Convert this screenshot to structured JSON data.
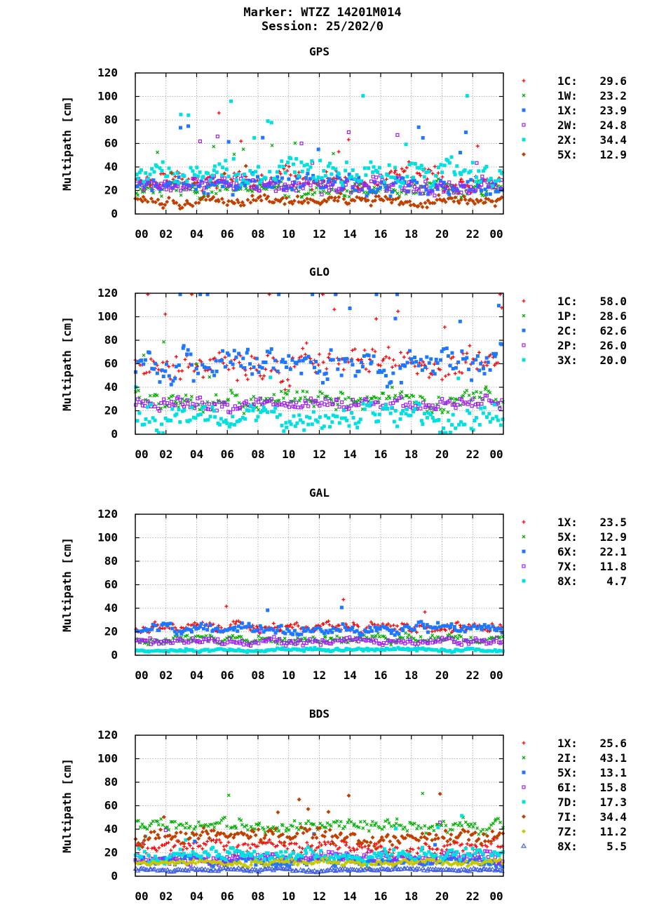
{
  "header": {
    "marker": "Marker: WTZZ 14201M014",
    "session": "Session: 25/202/0"
  },
  "chart_data": [
    {
      "type": "scatter",
      "title": "GPS",
      "ylabel": "Multipath [cm]",
      "xlabel": "",
      "ylim": [
        0,
        120
      ],
      "xlim": [
        0,
        24
      ],
      "yticks": [
        "0",
        "20",
        "40",
        "60",
        "80",
        "100",
        "120"
      ],
      "xticks": [
        "00",
        "02",
        "04",
        "06",
        "08",
        "10",
        "12",
        "14",
        "16",
        "18",
        "20",
        "22",
        "00"
      ],
      "grid": true,
      "legend_position": "right",
      "series": [
        {
          "name": "1C:",
          "value": "29.6",
          "color": "#ff0000",
          "marker": "plus",
          "level": 29.6,
          "spread": 10,
          "spike_rate": 0.012
        },
        {
          "name": "1W:",
          "value": "23.2",
          "color": "#00b000",
          "marker": "cross",
          "level": 22,
          "spread": 8,
          "spike_rate": 0.005
        },
        {
          "name": "1X:",
          "value": "23.9",
          "color": "#1e78ff",
          "marker": "square",
          "level": 23.9,
          "spread": 9,
          "spike_rate": 0.014
        },
        {
          "name": "2W:",
          "value": "24.8",
          "color": "#a020f0",
          "marker": "open-square",
          "level": 24.8,
          "spread": 8,
          "spike_rate": 0.004
        },
        {
          "name": "2X:",
          "value": "34.4",
          "color": "#00e0e0",
          "marker": "square",
          "level": 34.4,
          "spread": 12,
          "spike_rate": 0.012
        },
        {
          "name": "5X:",
          "value": "12.9",
          "color": "#c04000",
          "marker": "diamond",
          "level": 11,
          "spread": 5,
          "spike_rate": 0.008
        }
      ]
    },
    {
      "type": "scatter",
      "title": "GLO",
      "ylabel": "Multipath [cm]",
      "xlabel": "",
      "ylim": [
        0,
        120
      ],
      "xlim": [
        0,
        24
      ],
      "yticks": [
        "0",
        "20",
        "40",
        "60",
        "80",
        "100",
        "120"
      ],
      "xticks": [
        "00",
        "02",
        "04",
        "06",
        "08",
        "10",
        "12",
        "14",
        "16",
        "18",
        "20",
        "22",
        "00"
      ],
      "grid": true,
      "legend_position": "right",
      "series": [
        {
          "name": "1C:",
          "value": "58.0",
          "color": "#ff0000",
          "marker": "plus",
          "level": 58,
          "spread": 14,
          "spike_rate": 0.015
        },
        {
          "name": "1P:",
          "value": "28.6",
          "color": "#00b000",
          "marker": "cross",
          "level": 28.6,
          "spread": 9,
          "spike_rate": 0.006
        },
        {
          "name": "2C:",
          "value": "62.6",
          "color": "#1e78ff",
          "marker": "square",
          "level": 62.6,
          "spread": 15,
          "spike_rate": 0.015
        },
        {
          "name": "2P:",
          "value": "26.0",
          "color": "#a020f0",
          "marker": "open-square",
          "level": 26,
          "spread": 6,
          "spike_rate": 0.004
        },
        {
          "name": "3X:",
          "value": "20.0",
          "color": "#00e0e0",
          "marker": "square",
          "level": 14,
          "spread": 12,
          "spike_rate": 0.012
        }
      ]
    },
    {
      "type": "scatter",
      "title": "GAL",
      "ylabel": "Multipath [cm]",
      "xlabel": "",
      "ylim": [
        0,
        120
      ],
      "xlim": [
        0,
        24
      ],
      "yticks": [
        "0",
        "20",
        "40",
        "60",
        "80",
        "100",
        "120"
      ],
      "xticks": [
        "00",
        "02",
        "04",
        "06",
        "08",
        "10",
        "12",
        "14",
        "16",
        "18",
        "20",
        "22",
        "00"
      ],
      "grid": true,
      "legend_position": "right",
      "series": [
        {
          "name": "1X:",
          "value": "23.5",
          "color": "#ff0000",
          "marker": "plus",
          "level": 23.5,
          "spread": 5,
          "spike_rate": 0.004
        },
        {
          "name": "5X:",
          "value": "12.9",
          "color": "#00b000",
          "marker": "cross",
          "level": 13,
          "spread": 4,
          "spike_rate": 0.002
        },
        {
          "name": "6X:",
          "value": "22.1",
          "color": "#1e78ff",
          "marker": "square",
          "level": 22.1,
          "spread": 5,
          "spike_rate": 0.004
        },
        {
          "name": "7X:",
          "value": "11.8",
          "color": "#a020f0",
          "marker": "open-square",
          "level": 11.8,
          "spread": 3.5,
          "spike_rate": 0.002
        },
        {
          "name": "8X:",
          "value": "4.7",
          "color": "#00e0e0",
          "marker": "square",
          "level": 4.7,
          "spread": 1.5,
          "spike_rate": 0.0
        }
      ]
    },
    {
      "type": "scatter",
      "title": "BDS",
      "ylabel": "Multipath [cm]",
      "xlabel": "",
      "ylim": [
        0,
        120
      ],
      "xlim": [
        0,
        24
      ],
      "yticks": [
        "0",
        "20",
        "40",
        "60",
        "80",
        "100",
        "120"
      ],
      "xticks": [
        "00",
        "02",
        "04",
        "06",
        "08",
        "10",
        "12",
        "14",
        "16",
        "18",
        "20",
        "22",
        "00"
      ],
      "grid": true,
      "legend_position": "right",
      "series": [
        {
          "name": "1X:",
          "value": "25.6",
          "color": "#ff0000",
          "marker": "plus",
          "level": 25.6,
          "spread": 6,
          "spike_rate": 0.004
        },
        {
          "name": "2I:",
          "value": "43.1",
          "color": "#00b000",
          "marker": "cross",
          "level": 43.1,
          "spread": 6,
          "spike_rate": 0.006
        },
        {
          "name": "5X:",
          "value": "13.1",
          "color": "#1e78ff",
          "marker": "square",
          "level": 13.1,
          "spread": 4,
          "spike_rate": 0.003
        },
        {
          "name": "6I:",
          "value": "15.8",
          "color": "#a020f0",
          "marker": "open-square",
          "level": 15.8,
          "spread": 5,
          "spike_rate": 0.004
        },
        {
          "name": "7D:",
          "value": "17.3",
          "color": "#00e0e0",
          "marker": "square",
          "level": 17.3,
          "spread": 6,
          "spike_rate": 0.004
        },
        {
          "name": "7I:",
          "value": "34.4",
          "color": "#c04000",
          "marker": "diamond",
          "level": 34.4,
          "spread": 7,
          "spike_rate": 0.006
        },
        {
          "name": "7Z:",
          "value": "11.2",
          "color": "#c8c800",
          "marker": "diamond",
          "level": 11.2,
          "spread": 3,
          "spike_rate": 0.002
        },
        {
          "name": "8X:",
          "value": "5.5",
          "color": "#4060e0",
          "marker": "triangle",
          "level": 5.5,
          "spread": 1.5,
          "spike_rate": 0.003
        }
      ]
    }
  ]
}
